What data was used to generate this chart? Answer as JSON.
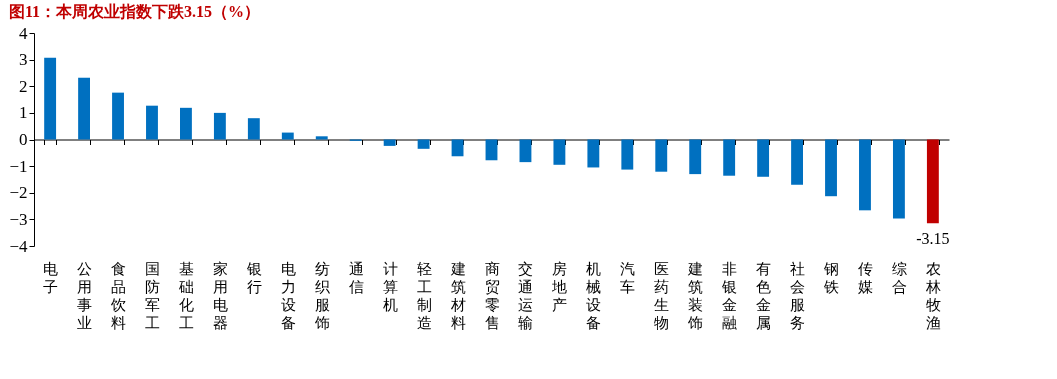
{
  "chart_data": {
    "type": "bar",
    "title": "图11：本周农业指数下跌3.15（%）",
    "categories": [
      "电子",
      "公用事业",
      "食品饮料",
      "国防军工",
      "基础化工",
      "家用电器",
      "银行",
      "电力设备",
      "纺织服饰",
      "通信",
      "计算机",
      "轻工制造",
      "建筑材料",
      "商贸零售",
      "交通运输",
      "房地产",
      "机械设备",
      "汽车",
      "医药生物",
      "建筑装饰",
      "非银金融",
      "有色金属",
      "社会服务",
      "钢铁",
      "传媒",
      "综合",
      "农林牧渔"
    ],
    "values": [
      3.07,
      2.32,
      1.76,
      1.27,
      1.19,
      1.0,
      0.8,
      0.26,
      0.12,
      -0.05,
      -0.24,
      -0.35,
      -0.63,
      -0.78,
      -0.85,
      -0.95,
      -1.05,
      -1.13,
      -1.21,
      -1.3,
      -1.36,
      -1.4,
      -1.7,
      -2.13,
      -2.66,
      -2.97,
      -3.15
    ],
    "colors": [
      "#0070c0",
      "#0070c0",
      "#0070c0",
      "#0070c0",
      "#0070c0",
      "#0070c0",
      "#0070c0",
      "#0070c0",
      "#0070c0",
      "#0070c0",
      "#0070c0",
      "#0070c0",
      "#0070c0",
      "#0070c0",
      "#0070c0",
      "#0070c0",
      "#0070c0",
      "#0070c0",
      "#0070c0",
      "#0070c0",
      "#0070c0",
      "#0070c0",
      "#0070c0",
      "#0070c0",
      "#0070c0",
      "#0070c0",
      "#c00000"
    ],
    "value_labels": [
      null,
      null,
      null,
      null,
      null,
      null,
      null,
      null,
      null,
      null,
      null,
      null,
      null,
      null,
      null,
      null,
      null,
      null,
      null,
      null,
      null,
      null,
      null,
      null,
      null,
      null,
      "-3.15"
    ],
    "ylim": [
      -4,
      4
    ],
    "yticks": [
      -4,
      -3,
      -2,
      -1,
      0,
      1,
      2,
      3,
      4
    ]
  }
}
